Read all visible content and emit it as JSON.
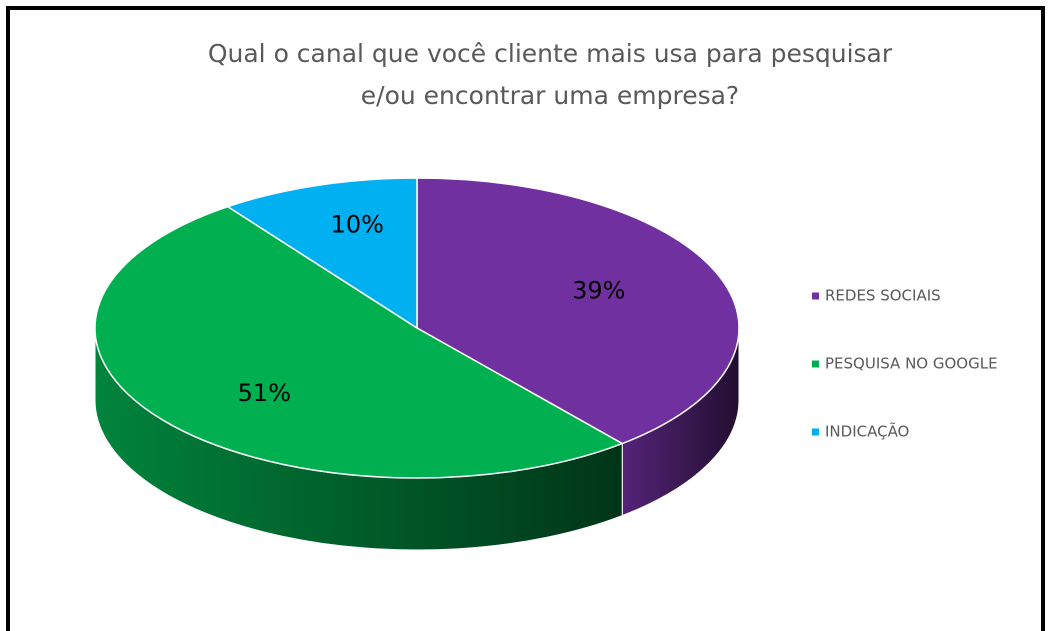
{
  "chart_data": {
    "type": "pie",
    "title": "Qual o canal que você cliente mais usa para pesquisar e/ou encontrar uma empresa?",
    "categories": [
      "REDES SOCIAIS",
      "PESQUISA NO GOOGLE",
      "INDICAÇÃO"
    ],
    "values": [
      39,
      51,
      10
    ],
    "value_labels": [
      "39%",
      "51%",
      "10%"
    ],
    "colors": [
      "#7030a0",
      "#00b050",
      "#00b0f0"
    ],
    "legend": "right"
  }
}
